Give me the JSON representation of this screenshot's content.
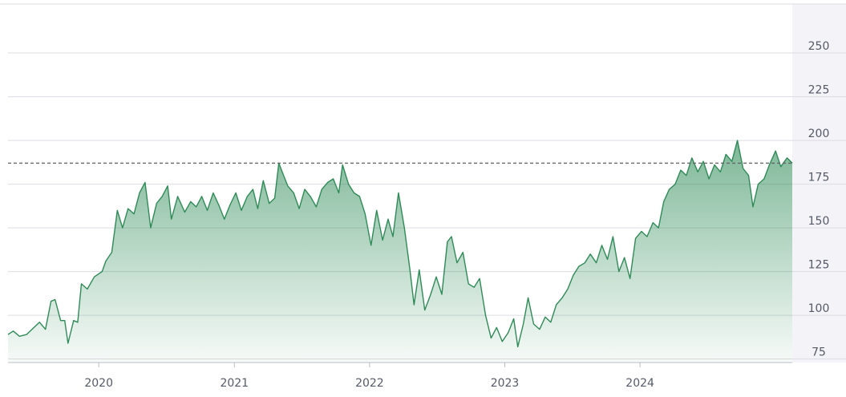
{
  "chart_data": {
    "type": "area",
    "x_axis": {
      "type": "date",
      "ticks": [
        "2020",
        "2021",
        "2022",
        "2023",
        "2024"
      ]
    },
    "y_axis": {
      "position": "right",
      "ticks": [
        75,
        100,
        125,
        150,
        175,
        200,
        225,
        250
      ],
      "range": [
        73,
        278
      ]
    },
    "grid": true,
    "reference_line": {
      "value": 187,
      "style": "dashed"
    },
    "colors": {
      "line": "#2e8b57",
      "fill_top": "#2e8b57",
      "fill_bottom": "#ffffff",
      "axis_panel": "#f4f3f8"
    },
    "series": [
      {
        "values": [
          [
            "2019-05-01",
            89
          ],
          [
            "2019-05-15",
            91
          ],
          [
            "2019-06-01",
            88
          ],
          [
            "2019-06-20",
            89
          ],
          [
            "2019-07-10",
            93
          ],
          [
            "2019-07-25",
            96
          ],
          [
            "2019-08-10",
            92
          ],
          [
            "2019-08-25",
            108
          ],
          [
            "2019-09-05",
            109
          ],
          [
            "2019-09-20",
            97
          ],
          [
            "2019-10-01",
            97
          ],
          [
            "2019-10-10",
            84
          ],
          [
            "2019-10-25",
            97
          ],
          [
            "2019-11-05",
            96
          ],
          [
            "2019-11-15",
            118
          ],
          [
            "2019-12-01",
            115
          ],
          [
            "2019-12-20",
            122
          ],
          [
            "2020-01-10",
            125
          ],
          [
            "2020-01-20",
            131
          ],
          [
            "2020-02-05",
            136
          ],
          [
            "2020-02-20",
            160
          ],
          [
            "2020-03-05",
            150
          ],
          [
            "2020-03-20",
            161
          ],
          [
            "2020-04-05",
            158
          ],
          [
            "2020-04-20",
            170
          ],
          [
            "2020-05-05",
            176
          ],
          [
            "2020-05-20",
            150
          ],
          [
            "2020-06-05",
            164
          ],
          [
            "2020-06-20",
            168
          ],
          [
            "2020-07-05",
            174
          ],
          [
            "2020-07-15",
            155
          ],
          [
            "2020-08-01",
            168
          ],
          [
            "2020-08-20",
            159
          ],
          [
            "2020-09-05",
            165
          ],
          [
            "2020-09-20",
            162
          ],
          [
            "2020-10-05",
            168
          ],
          [
            "2020-10-20",
            160
          ],
          [
            "2020-11-05",
            170
          ],
          [
            "2020-11-20",
            163
          ],
          [
            "2020-12-05",
            155
          ],
          [
            "2020-12-20",
            163
          ],
          [
            "2021-01-05",
            170
          ],
          [
            "2021-01-20",
            160
          ],
          [
            "2021-02-05",
            168
          ],
          [
            "2021-02-20",
            172
          ],
          [
            "2021-03-05",
            161
          ],
          [
            "2021-03-20",
            177
          ],
          [
            "2021-04-05",
            164
          ],
          [
            "2021-04-20",
            167
          ],
          [
            "2021-05-01",
            187
          ],
          [
            "2021-05-10",
            182
          ],
          [
            "2021-05-25",
            174
          ],
          [
            "2021-06-10",
            170
          ],
          [
            "2021-06-25",
            161
          ],
          [
            "2021-07-10",
            172
          ],
          [
            "2021-07-25",
            168
          ],
          [
            "2021-08-10",
            162
          ],
          [
            "2021-08-25",
            172
          ],
          [
            "2021-09-10",
            176
          ],
          [
            "2021-09-25",
            178
          ],
          [
            "2021-10-10",
            170
          ],
          [
            "2021-10-20",
            186
          ],
          [
            "2021-11-05",
            175
          ],
          [
            "2021-11-20",
            170
          ],
          [
            "2021-12-05",
            168
          ],
          [
            "2021-12-20",
            158
          ],
          [
            "2022-01-05",
            140
          ],
          [
            "2022-01-20",
            160
          ],
          [
            "2022-02-05",
            143
          ],
          [
            "2022-02-20",
            155
          ],
          [
            "2022-03-05",
            145
          ],
          [
            "2022-03-20",
            170
          ],
          [
            "2022-04-05",
            150
          ],
          [
            "2022-04-20",
            126
          ],
          [
            "2022-05-01",
            106
          ],
          [
            "2022-05-15",
            126
          ],
          [
            "2022-05-30",
            103
          ],
          [
            "2022-06-15",
            112
          ],
          [
            "2022-06-30",
            122
          ],
          [
            "2022-07-15",
            112
          ],
          [
            "2022-07-30",
            142
          ],
          [
            "2022-08-10",
            145
          ],
          [
            "2022-08-25",
            130
          ],
          [
            "2022-09-10",
            136
          ],
          [
            "2022-09-25",
            118
          ],
          [
            "2022-10-10",
            116
          ],
          [
            "2022-10-25",
            121
          ],
          [
            "2022-11-10",
            100
          ],
          [
            "2022-11-25",
            87
          ],
          [
            "2022-12-10",
            93
          ],
          [
            "2022-12-25",
            85
          ],
          [
            "2023-01-10",
            90
          ],
          [
            "2023-01-25",
            98
          ],
          [
            "2023-02-05",
            82
          ],
          [
            "2023-02-20",
            95
          ],
          [
            "2023-03-05",
            110
          ],
          [
            "2023-03-20",
            95
          ],
          [
            "2023-04-05",
            92
          ],
          [
            "2023-04-20",
            99
          ],
          [
            "2023-05-05",
            96
          ],
          [
            "2023-05-20",
            106
          ],
          [
            "2023-06-05",
            110
          ],
          [
            "2023-06-20",
            115
          ],
          [
            "2023-07-05",
            123
          ],
          [
            "2023-07-20",
            128
          ],
          [
            "2023-08-05",
            130
          ],
          [
            "2023-08-20",
            135
          ],
          [
            "2023-09-05",
            130
          ],
          [
            "2023-09-20",
            140
          ],
          [
            "2023-10-05",
            132
          ],
          [
            "2023-10-20",
            145
          ],
          [
            "2023-11-05",
            125
          ],
          [
            "2023-11-20",
            133
          ],
          [
            "2023-12-05",
            121
          ],
          [
            "2023-12-20",
            144
          ],
          [
            "2024-01-05",
            148
          ],
          [
            "2024-01-20",
            145
          ],
          [
            "2024-02-05",
            153
          ],
          [
            "2024-02-20",
            150
          ],
          [
            "2024-03-05",
            165
          ],
          [
            "2024-03-20",
            172
          ],
          [
            "2024-04-05",
            175
          ],
          [
            "2024-04-20",
            183
          ],
          [
            "2024-05-05",
            180
          ],
          [
            "2024-05-20",
            190
          ],
          [
            "2024-06-05",
            182
          ],
          [
            "2024-06-20",
            188
          ],
          [
            "2024-07-05",
            178
          ],
          [
            "2024-07-20",
            186
          ],
          [
            "2024-08-05",
            182
          ],
          [
            "2024-08-20",
            192
          ],
          [
            "2024-09-05",
            188
          ],
          [
            "2024-09-20",
            200
          ],
          [
            "2024-10-05",
            184
          ],
          [
            "2024-10-20",
            180
          ],
          [
            "2024-11-01",
            162
          ],
          [
            "2024-11-15",
            175
          ],
          [
            "2024-12-01",
            178
          ],
          [
            "2024-12-15",
            186
          ],
          [
            "2025-01-01",
            194
          ],
          [
            "2025-01-15",
            185
          ],
          [
            "2025-02-01",
            190
          ],
          [
            "2025-02-15",
            187
          ]
        ]
      }
    ]
  }
}
